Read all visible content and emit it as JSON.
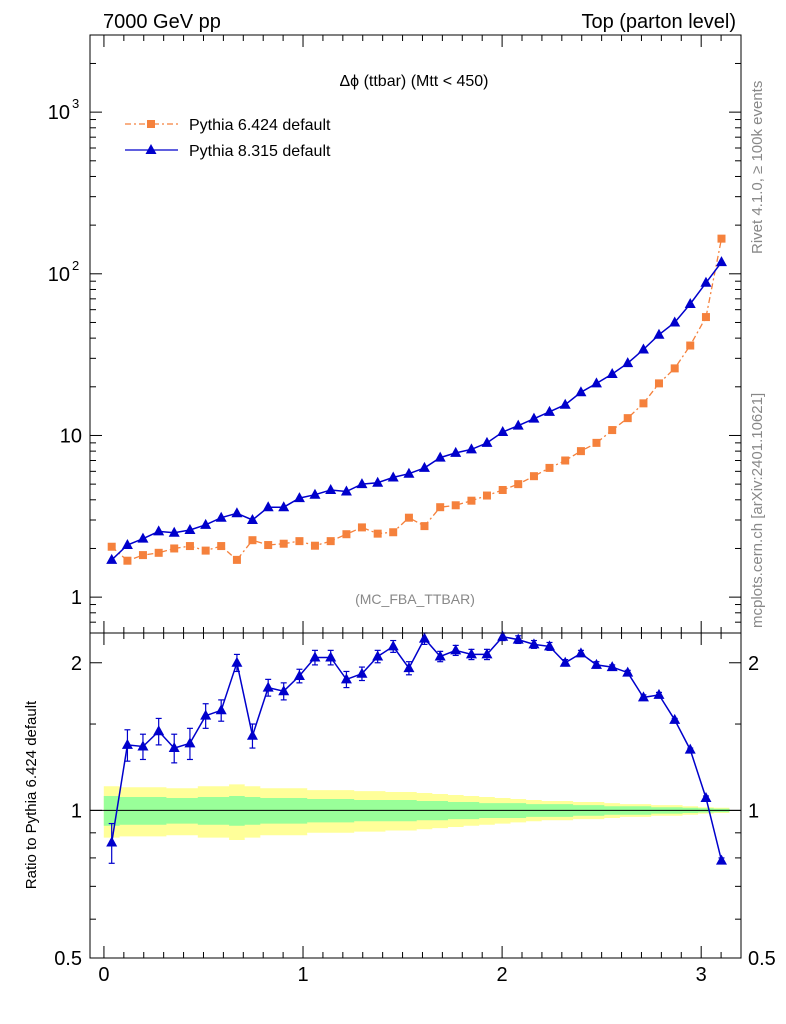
{
  "header": {
    "left": "7000 GeV pp",
    "right": "Top (parton level)"
  },
  "side_labels": {
    "rivet": "Rivet 4.1.0, ≥ 100k events",
    "mcplots": "mcplots.cern.ch [arXiv:2401.10621]"
  },
  "colors": {
    "pythia6": "#f5813c",
    "pythia8": "#0000cc",
    "band_inner": "#99ff99",
    "band_outer": "#ffff99"
  },
  "chart_data": [
    {
      "type": "line",
      "title": "Δϕ (ttbar) (Mtt < 450)",
      "watermark": "(MC_FBA_TTBAR)",
      "yscale": "log",
      "xlim": [
        -0.07,
        3.2
      ],
      "ylim": [
        0.6,
        3000
      ],
      "yticks": [
        {
          "value": 1,
          "label": "1",
          "sup": ""
        },
        {
          "value": 10,
          "label": "10",
          "sup": ""
        },
        {
          "value": 100,
          "label": "10",
          "sup": "2"
        },
        {
          "value": 1000,
          "label": "10",
          "sup": "3"
        }
      ],
      "legend_position": "top-left",
      "x": [
        0.039,
        0.118,
        0.196,
        0.275,
        0.353,
        0.432,
        0.511,
        0.589,
        0.668,
        0.746,
        0.825,
        0.903,
        0.982,
        1.06,
        1.139,
        1.218,
        1.296,
        1.375,
        1.453,
        1.532,
        1.61,
        1.689,
        1.767,
        1.846,
        1.924,
        2.003,
        2.081,
        2.16,
        2.238,
        2.317,
        2.396,
        2.474,
        2.553,
        2.631,
        2.71,
        2.788,
        2.867,
        2.945,
        3.024,
        3.102
      ],
      "series": [
        {
          "name": "Pythia 6.424 default",
          "marker": "square",
          "values": [
            2.05,
            1.68,
            1.82,
            1.88,
            2.0,
            2.07,
            1.94,
            2.07,
            1.7,
            2.25,
            2.1,
            2.14,
            2.22,
            2.08,
            2.22,
            2.45,
            2.7,
            2.47,
            2.52,
            3.1,
            2.75,
            3.6,
            3.7,
            3.95,
            4.25,
            4.6,
            5.0,
            5.6,
            6.3,
            7.0,
            8.0,
            9.0,
            10.8,
            12.8,
            15.8,
            21,
            26,
            36,
            54,
            165
          ]
        },
        {
          "name": "Pythia 8.315 default",
          "marker": "triangle",
          "values": [
            1.7,
            2.1,
            2.3,
            2.55,
            2.5,
            2.6,
            2.8,
            3.1,
            3.3,
            3.0,
            3.6,
            3.6,
            4.1,
            4.3,
            4.6,
            4.5,
            5.0,
            5.1,
            5.5,
            5.8,
            6.3,
            7.3,
            7.8,
            8.2,
            9.0,
            10.5,
            11.5,
            12.7,
            14.0,
            15.5,
            18.5,
            21,
            24,
            28,
            34,
            42,
            50,
            65,
            88,
            118
          ]
        }
      ]
    },
    {
      "type": "line",
      "ylabel": "Ratio to Pythia 6.424 default",
      "xlim": [
        -0.07,
        3.2
      ],
      "ylim": [
        0.5,
        2.3
      ],
      "xticks": [
        "0",
        "1",
        "2",
        "3"
      ],
      "yticks": [
        {
          "value": 0.5,
          "label": "0.5"
        },
        {
          "value": 1,
          "label": "1"
        },
        {
          "value": 2,
          "label": "2"
        }
      ],
      "reference": 1,
      "band_inner": [
        0.07,
        0.065,
        0.065,
        0.065,
        0.06,
        0.06,
        0.065,
        0.065,
        0.07,
        0.065,
        0.06,
        0.06,
        0.06,
        0.055,
        0.055,
        0.055,
        0.05,
        0.05,
        0.05,
        0.05,
        0.045,
        0.045,
        0.04,
        0.04,
        0.035,
        0.035,
        0.035,
        0.03,
        0.03,
        0.03,
        0.025,
        0.025,
        0.02,
        0.02,
        0.02,
        0.015,
        0.015,
        0.012,
        0.01,
        0.008
      ],
      "band_outer": [
        0.12,
        0.115,
        0.115,
        0.115,
        0.11,
        0.11,
        0.12,
        0.12,
        0.13,
        0.12,
        0.11,
        0.11,
        0.11,
        0.1,
        0.1,
        0.1,
        0.095,
        0.095,
        0.09,
        0.09,
        0.085,
        0.08,
        0.075,
        0.07,
        0.065,
        0.06,
        0.055,
        0.05,
        0.045,
        0.045,
        0.04,
        0.04,
        0.035,
        0.03,
        0.03,
        0.025,
        0.025,
        0.02,
        0.015,
        0.012
      ],
      "series": [
        {
          "name": "Pythia 8.315 / Pythia 6.424",
          "values": [
            0.86,
            1.36,
            1.35,
            1.45,
            1.34,
            1.37,
            1.56,
            1.6,
            2.0,
            1.42,
            1.78,
            1.75,
            1.88,
            2.05,
            2.05,
            1.85,
            1.9,
            2.06,
            2.16,
            1.95,
            2.24,
            2.06,
            2.12,
            2.08,
            2.08,
            2.26,
            2.23,
            2.18,
            2.16,
            2.0,
            2.09,
            1.98,
            1.96,
            1.91,
            1.7,
            1.72,
            1.53,
            1.33,
            1.06,
            0.79
          ],
          "errors": [
            0.08,
            0.1,
            0.08,
            0.09,
            0.09,
            0.1,
            0.09,
            0.08,
            0.08,
            0.08,
            0.07,
            0.07,
            0.06,
            0.07,
            0.07,
            0.07,
            0.06,
            0.06,
            0.06,
            0.06,
            0.06,
            0.05,
            0.05,
            0.05,
            0.05,
            0.04,
            0.04,
            0.04,
            0.04,
            0.03,
            0.03,
            0.03,
            0.02,
            0.02,
            0.02,
            0.02,
            0.01,
            0.01,
            0.01,
            0.01
          ]
        }
      ]
    }
  ]
}
